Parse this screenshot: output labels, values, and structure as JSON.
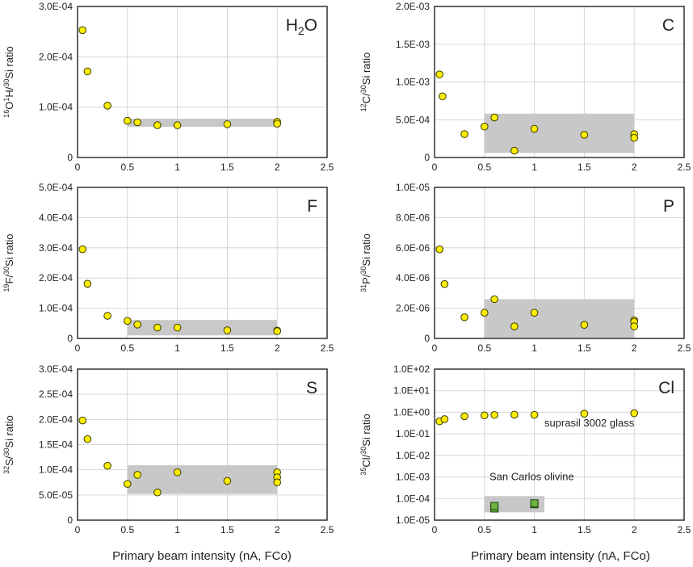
{
  "colors": {
    "marker": "#ffee00",
    "marker_edge": "#3a3a00",
    "band": "#c8c8c8",
    "grid": "#d6d6d6",
    "axis": "#222222",
    "olivine_marker": "#6cb33f",
    "olivine_edge": "#1d3d10"
  },
  "x_axis_label": "Primary beam intensity (nA, FCo)",
  "chart_data": [
    {
      "id": "h2o",
      "type": "scatter",
      "label_main": "H",
      "label_sub": "2",
      "label_end": "O",
      "ylabel": {
        "sup1": "16",
        "t1": "O",
        "sup2": "1",
        "t2": "H/",
        "sup3": "30",
        "t3": "Si ratio"
      },
      "xlim": [
        0,
        2.5
      ],
      "xticks": [
        "0",
        "0.5",
        "1",
        "1.5",
        "2",
        "2.5"
      ],
      "scale": "linear",
      "ylim": [
        0,
        0.0003
      ],
      "yticks": [
        "0",
        "1.0E-04",
        "2.0E-04",
        "3.0E-04"
      ],
      "x": [
        0.05,
        0.1,
        0.3,
        0.5,
        0.6,
        0.8,
        1.0,
        1.5,
        2.0,
        2.0
      ],
      "y": [
        0.000253,
        0.000171,
        0.000103,
        7.3e-05,
        7e-05,
        6.4e-05,
        6.4e-05,
        6.6e-05,
        7.1e-05,
        6.7e-05
      ],
      "band": {
        "x0": 0.5,
        "x1": 2.0,
        "y0": 6.1e-05,
        "y1": 7.7e-05
      }
    },
    {
      "id": "c",
      "type": "scatter",
      "label_main": "C",
      "ylabel": {
        "sup1": "12",
        "t1": "C/",
        "sup2": "30",
        "t2": "Si ratio"
      },
      "xlim": [
        0,
        2.5
      ],
      "xticks": [
        "0",
        "0.5",
        "1",
        "1.5",
        "2",
        "2.5"
      ],
      "scale": "linear",
      "ylim": [
        0,
        0.002
      ],
      "yticks": [
        "0",
        "5.0E-04",
        "1.0E-03",
        "1.5E-03",
        "2.0E-03"
      ],
      "x": [
        0.05,
        0.08,
        0.3,
        0.5,
        0.6,
        0.8,
        1.0,
        1.5,
        2.0,
        2.0
      ],
      "y": [
        0.0011,
        0.00081,
        0.00031,
        0.00041,
        0.00053,
        9e-05,
        0.00038,
        0.0003,
        0.00031,
        0.00026
      ],
      "band": {
        "x0": 0.5,
        "x1": 2.0,
        "y0": 6e-05,
        "y1": 0.00058
      }
    },
    {
      "id": "f",
      "type": "scatter",
      "label_main": "F",
      "ylabel": {
        "sup1": "19",
        "t1": "F/",
        "sup2": "30",
        "t2": "Si ratio"
      },
      "xlim": [
        0,
        2.5
      ],
      "xticks": [
        "0",
        "0.5",
        "1",
        "1.5",
        "2",
        "2.5"
      ],
      "scale": "linear",
      "ylim": [
        0,
        0.0005
      ],
      "yticks": [
        "0",
        "1.0E-04",
        "2.0E-04",
        "3.0E-04",
        "4.0E-04",
        "5.0E-04"
      ],
      "x": [
        0.05,
        0.1,
        0.3,
        0.5,
        0.6,
        0.8,
        1.0,
        1.5,
        2.0,
        2.0
      ],
      "y": [
        0.000295,
        0.000181,
        7.5e-05,
        5.8e-05,
        4.6e-05,
        3.6e-05,
        3.6e-05,
        2.7e-05,
        2.6e-05,
        2.4e-05
      ],
      "band": {
        "x0": 0.5,
        "x1": 2.0,
        "y0": 1e-05,
        "y1": 6.1e-05
      }
    },
    {
      "id": "p",
      "type": "scatter",
      "label_main": "P",
      "ylabel": {
        "sup1": "31",
        "t1": "P/",
        "sup2": "30",
        "t2": "Si ratio"
      },
      "xlim": [
        0,
        2.5
      ],
      "xticks": [
        "0",
        "0.5",
        "1",
        "1.5",
        "2",
        "2.5"
      ],
      "scale": "linear",
      "ylim": [
        0,
        1e-05
      ],
      "yticks": [
        "0",
        "2.0E-06",
        "4.0E-06",
        "6.0E-06",
        "8.0E-06",
        "1.0E-05"
      ],
      "x": [
        0.05,
        0.1,
        0.3,
        0.5,
        0.6,
        0.8,
        1.0,
        1.5,
        2.0,
        2.0,
        2.0
      ],
      "y": [
        5.9e-06,
        3.6e-06,
        1.4e-06,
        1.7e-06,
        2.6e-06,
        8e-07,
        1.7e-06,
        9e-07,
        1.2e-06,
        1.1e-06,
        8e-07
      ],
      "band": {
        "x0": 0.5,
        "x1": 2.0,
        "y0": 5e-08,
        "y1": 2.6e-06
      }
    },
    {
      "id": "s",
      "type": "scatter",
      "label_main": "S",
      "ylabel": {
        "sup1": "32",
        "t1": "S/",
        "sup2": "30",
        "t2": "Si ratio"
      },
      "xlim": [
        0,
        2.5
      ],
      "xticks": [
        "0",
        "0.5",
        "1",
        "1.5",
        "2",
        "2.5"
      ],
      "scale": "linear",
      "ylim": [
        0,
        0.0003
      ],
      "yticks": [
        "0",
        "5.0E-05",
        "1.0E-04",
        "1.5E-04",
        "2.0E-04",
        "2.5E-04",
        "3.0E-04"
      ],
      "x": [
        0.05,
        0.1,
        0.3,
        0.5,
        0.6,
        0.8,
        1.0,
        1.5,
        2.0,
        2.0,
        2.0
      ],
      "y": [
        0.000198,
        0.000161,
        0.000108,
        7.2e-05,
        9e-05,
        5.5e-05,
        9.5e-05,
        7.8e-05,
        9.5e-05,
        8.5e-05,
        7.5e-05
      ],
      "band": {
        "x0": 0.5,
        "x1": 2.0,
        "y0": 5.2e-05,
        "y1": 0.000109
      }
    },
    {
      "id": "cl",
      "type": "scatter",
      "label_main": "Cl",
      "ylabel": {
        "sup1": "35",
        "t1": "Cl/",
        "sup2": "30",
        "t2": "Si ratio"
      },
      "xlim": [
        0,
        2.5
      ],
      "xticks": [
        "0",
        "0.5",
        "1",
        "1.5",
        "2",
        "2.5"
      ],
      "scale": "log",
      "ylim_exp": [
        -5,
        2
      ],
      "yticks": [
        "1.0E-05",
        "1.0E-04",
        "1.0E-03",
        "1.0E-02",
        "1.0E-01",
        "1.0E+00",
        "1.0E+01",
        "1.0E+02"
      ],
      "x": [
        0.05,
        0.1,
        0.3,
        0.5,
        0.6,
        0.8,
        1.0,
        1.5,
        2.0
      ],
      "y": [
        0.38,
        0.48,
        0.65,
        0.72,
        0.75,
        0.77,
        0.76,
        0.86,
        0.9
      ],
      "series2": {
        "name": "San Carlos olivine",
        "x": [
          0.6,
          0.6,
          1.0,
          1.0
        ],
        "y": [
          3.5e-05,
          4.5e-05,
          5.5e-05,
          6e-05
        ]
      },
      "band": {
        "x0": 0.5,
        "x1": 1.1,
        "y0": 2.3e-05,
        "y1": 0.00013
      },
      "annotations": [
        "suprasil 3002 glass",
        "San Carlos olivine"
      ]
    }
  ]
}
